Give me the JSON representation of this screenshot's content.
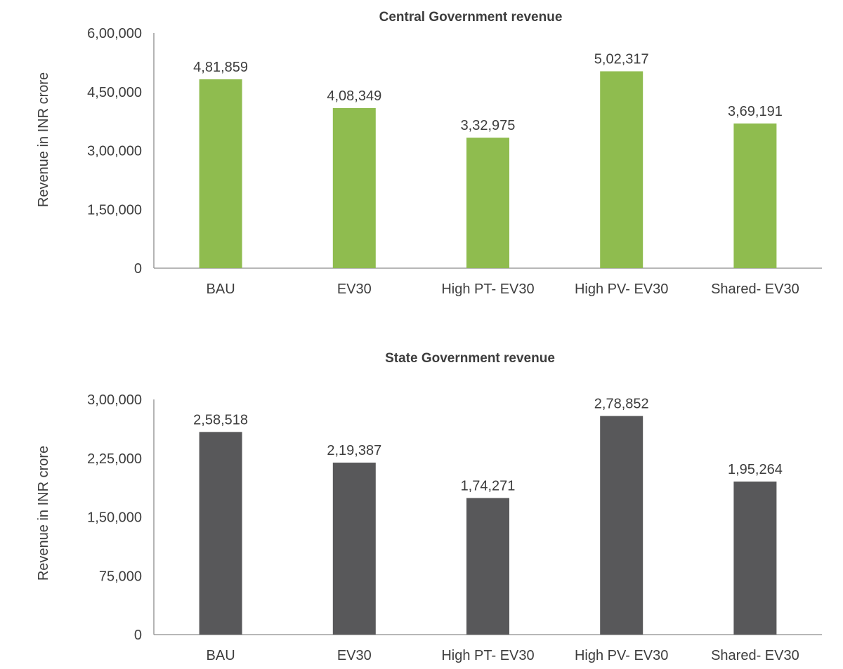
{
  "chart_data": [
    {
      "type": "bar",
      "title": "Central Government revenue",
      "xlabel": "",
      "ylabel": "Revenue in INR crore",
      "ylim": [
        0,
        600000
      ],
      "yticks": [
        0,
        150000,
        300000,
        450000,
        600000
      ],
      "ytick_labels": [
        "0",
        "1,50,000",
        "3,00,000",
        "4,50,000",
        "6,00,000"
      ],
      "categories": [
        "BAU",
        "EV30",
        "High PT- EV30",
        "High PV- EV30",
        "Shared- EV30"
      ],
      "values": [
        481859,
        408349,
        332975,
        502317,
        369191
      ],
      "value_labels": [
        "4,81,859",
        "4,08,349",
        "3,32,975",
        "5,02,317",
        "3,69,191"
      ],
      "color": "#8fbc4f",
      "grid": false,
      "legend": "none"
    },
    {
      "type": "bar",
      "title": "State Government revenue",
      "xlabel": "",
      "ylabel": "Revenue in INR crore",
      "ylim": [
        0,
        300000
      ],
      "yticks": [
        0,
        75000,
        150000,
        225000,
        300000
      ],
      "ytick_labels": [
        "0",
        "75,000",
        "1,50,000",
        "2,25,000",
        "3,00,000"
      ],
      "categories": [
        "BAU",
        "EV30",
        "High PT- EV30",
        "High PV- EV30",
        "Shared- EV30"
      ],
      "values": [
        258518,
        219387,
        174271,
        278852,
        195264
      ],
      "value_labels": [
        "2,58,518",
        "2,19,387",
        "1,74,271",
        "2,78,852",
        "1,95,264"
      ],
      "color": "#58585a",
      "grid": false,
      "legend": "none"
    }
  ]
}
